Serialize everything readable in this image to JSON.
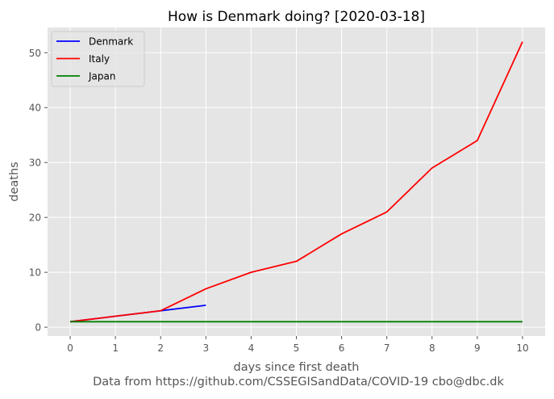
{
  "chart_data": {
    "type": "line",
    "title": "How is Denmark doing? [2020-03-18]",
    "xlabel": "days since first death",
    "ylabel": "deaths",
    "caption": "Data from https://github.com/CSSEGISandData/COVID-19 cbo@dbc.dk",
    "xlim": [
      -0.5,
      10.5
    ],
    "ylim": [
      -1.6,
      54.6
    ],
    "xticks": [
      0,
      1,
      2,
      3,
      4,
      5,
      6,
      7,
      8,
      9,
      10
    ],
    "yticks": [
      0,
      10,
      20,
      30,
      40,
      50
    ],
    "grid": true,
    "legend_position": "top-left",
    "colors": {
      "background": "#e5e5e5",
      "grid": "#ffffff",
      "tick_text": "#555555",
      "label_text": "#555555"
    },
    "series": [
      {
        "name": "Denmark",
        "color": "#0000ff",
        "x": [
          0,
          1,
          2,
          3
        ],
        "y": [
          1,
          2,
          3,
          4
        ]
      },
      {
        "name": "Italy",
        "color": "#ff0000",
        "x": [
          0,
          1,
          2,
          3,
          4,
          5,
          6,
          7,
          8,
          9,
          10
        ],
        "y": [
          1,
          2,
          3,
          7,
          10,
          12,
          17,
          21,
          29,
          34,
          52
        ]
      },
      {
        "name": "Japan",
        "color": "#008000",
        "x": [
          0,
          1,
          2,
          3,
          4,
          5,
          6,
          7,
          8,
          9,
          10
        ],
        "y": [
          1,
          1,
          1,
          1,
          1,
          1,
          1,
          1,
          1,
          1,
          1
        ]
      }
    ]
  }
}
